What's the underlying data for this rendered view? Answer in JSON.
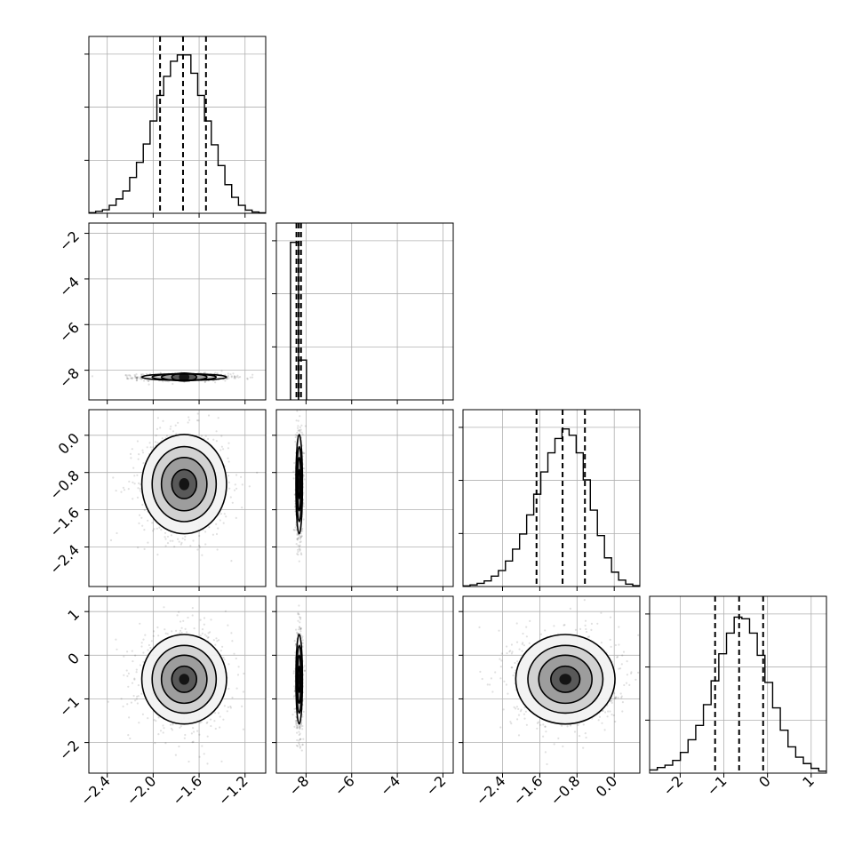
{
  "chart_data": {
    "type": "corner",
    "grid": true,
    "variables": [
      {
        "range": [
          -2.56,
          -1.02
        ],
        "ticks": [
          -2.4,
          -2.0,
          -1.6,
          -1.2
        ],
        "tick_labels": [
          "−2.4",
          "−2.0",
          "−1.6",
          "−1.2"
        ],
        "quantiles": [
          -1.94,
          -1.74,
          -1.54
        ],
        "hist": [
          0.004,
          0.012,
          0.022,
          0.05,
          0.09,
          0.14,
          0.225,
          0.32,
          0.435,
          0.58,
          0.74,
          0.86,
          0.955,
          0.995,
          0.995,
          0.88,
          0.74,
          0.58,
          0.43,
          0.3,
          0.18,
          0.1,
          0.05,
          0.02,
          0.008,
          0.003
        ],
        "sample": {
          "center": -1.73,
          "sd": 0.18
        }
      },
      {
        "range": [
          -9.3,
          -1.55
        ],
        "ticks": [
          -8,
          -6,
          -4,
          -2
        ],
        "tick_labels": [
          "−8",
          "−6",
          "−4",
          "−2"
        ],
        "quantiles": [
          -8.42,
          -8.32,
          -8.22
        ],
        "hist": [
          0,
          0,
          0,
          0,
          0,
          0,
          0,
          0,
          0,
          0,
          0,
          0,
          0,
          0,
          0,
          0,
          0,
          0,
          0,
          0,
          0
        ],
        "hist_bars": [
          {
            "x0": -8.68,
            "x1": -8.33,
            "h": 0.99
          },
          {
            "x0": -8.33,
            "x1": -7.98,
            "h": 0.25
          }
        ],
        "sample": {
          "center": -8.3,
          "sd": 0.07
        }
      },
      {
        "range": [
          -3.25,
          0.55
        ],
        "ticks": [
          -2.4,
          -1.6,
          -0.8,
          0.0
        ],
        "tick_labels": [
          "−2.4",
          "−1.6",
          "−0.8",
          "0.0"
        ],
        "quantiles": [
          -1.67,
          -1.11,
          -0.63
        ],
        "hist": [
          0.004,
          0.01,
          0.02,
          0.035,
          0.065,
          0.1,
          0.16,
          0.235,
          0.33,
          0.45,
          0.58,
          0.72,
          0.84,
          0.93,
          0.99,
          0.95,
          0.84,
          0.67,
          0.48,
          0.32,
          0.18,
          0.09,
          0.04,
          0.015,
          0.005
        ],
        "sample": {
          "center": -1.05,
          "sd": 0.52
        }
      },
      {
        "range": [
          -2.7,
          1.35
        ],
        "ticks": [
          -2,
          -1,
          0,
          1
        ],
        "tick_labels": [
          "−2",
          "−1",
          "0",
          "1"
        ],
        "quantiles": [
          -1.2,
          -0.65,
          -0.1
        ],
        "hist": [
          0.02,
          0.035,
          0.05,
          0.08,
          0.13,
          0.21,
          0.3,
          0.43,
          0.58,
          0.75,
          0.88,
          0.98,
          0.97,
          0.88,
          0.74,
          0.57,
          0.41,
          0.27,
          0.165,
          0.1,
          0.06,
          0.03,
          0.012
        ],
        "sample": {
          "center": -0.55,
          "sd": 0.5
        }
      }
    ],
    "hist_y_ticks": [
      0.333,
      0.667,
      1.0
    ],
    "contour_levels": [
      0.12,
      0.3,
      0.55,
      0.78
    ]
  }
}
